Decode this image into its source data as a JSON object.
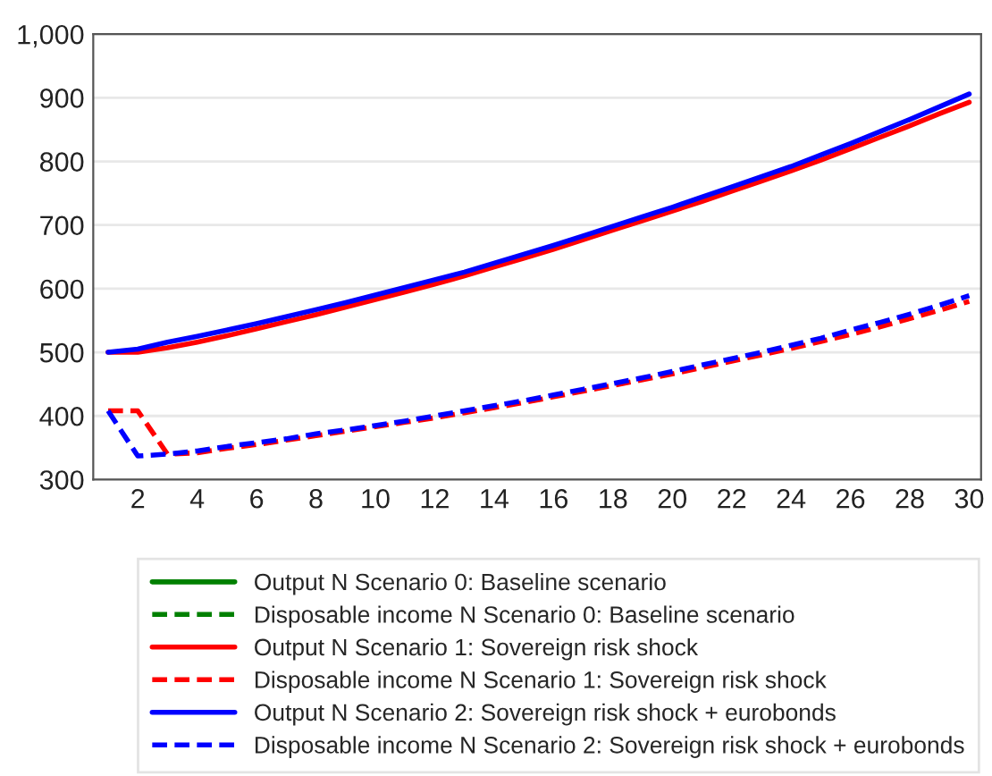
{
  "chart_data": {
    "type": "line",
    "x": [
      1,
      2,
      3,
      4,
      5,
      6,
      7,
      8,
      9,
      10,
      11,
      12,
      13,
      14,
      15,
      16,
      17,
      18,
      19,
      20,
      21,
      22,
      23,
      24,
      25,
      26,
      27,
      28,
      29,
      30
    ],
    "xlim": [
      0.5,
      30.4
    ],
    "xticks": [
      2,
      4,
      6,
      8,
      10,
      12,
      14,
      16,
      18,
      20,
      22,
      24,
      26,
      28,
      30
    ],
    "ylim": [
      300,
      1000
    ],
    "yticks": [
      300,
      400,
      500,
      600,
      700,
      800,
      900,
      {
        "value": 1000,
        "label": "1,000"
      }
    ],
    "grid": "y",
    "legend": "bottom",
    "marker": "none",
    "series": [
      {
        "name": "Output N Scenario 0: Baseline scenario",
        "color": "#008000",
        "line_style": "solid",
        "values": [
          null,
          null,
          null,
          null,
          null,
          null,
          null,
          null,
          null,
          null,
          null,
          null,
          null,
          null,
          null,
          null,
          null,
          null,
          null,
          null,
          null,
          null,
          null,
          null,
          null,
          null,
          null,
          null,
          null,
          null
        ]
      },
      {
        "name": "Disposable income N Scenario 0: Baseline scenario",
        "color": "#008000",
        "line_style": "dashed",
        "values": [
          null,
          null,
          null,
          null,
          null,
          null,
          null,
          null,
          null,
          null,
          null,
          null,
          null,
          null,
          null,
          null,
          null,
          null,
          null,
          null,
          null,
          null,
          null,
          null,
          null,
          null,
          null,
          null,
          null,
          null
        ]
      },
      {
        "name": "Output N Scenario 1: Sovereign risk shock",
        "color": "#ff0000",
        "line_style": "solid",
        "values": [
          500,
          500,
          507,
          516,
          526,
          537,
          548,
          559,
          571,
          583,
          595,
          607,
          620,
          634,
          648,
          662,
          677,
          692,
          707,
          722,
          737,
          753,
          769,
          785,
          802,
          820,
          838,
          856,
          875,
          893
        ]
      },
      {
        "name": "Disposable income N Scenario 1: Sovereign risk shock",
        "color": "#ff0000",
        "line_style": "dashed",
        "values": [
          408,
          408,
          340,
          342,
          349,
          355,
          362,
          369,
          376,
          383,
          390,
          397,
          405,
          413,
          421,
          430,
          439,
          448,
          457,
          466,
          476,
          486,
          496,
          506,
          517,
          528,
          540,
          553,
          566,
          580
        ]
      },
      {
        "name": "Output N Scenario 2: Sovereign risk shock + eurobonds",
        "color": "#0000ff",
        "line_style": "solid",
        "values": [
          500,
          505,
          516,
          525,
          535,
          545,
          556,
          567,
          578,
          590,
          602,
          614,
          626,
          640,
          654,
          668,
          683,
          698,
          713,
          728,
          744,
          760,
          776,
          792,
          810,
          828,
          847,
          866,
          886,
          906
        ]
      },
      {
        "name": "Disposable income N Scenario 2: Sovereign risk shock + eurobonds",
        "color": "#0000ff",
        "line_style": "dashed",
        "values": [
          408,
          337,
          340,
          345,
          352,
          358,
          364,
          372,
          378,
          385,
          392,
          400,
          408,
          416,
          424,
          433,
          442,
          451,
          460,
          470,
          480,
          490,
          500,
          511,
          522,
          535,
          547,
          560,
          574,
          589
        ]
      }
    ]
  }
}
